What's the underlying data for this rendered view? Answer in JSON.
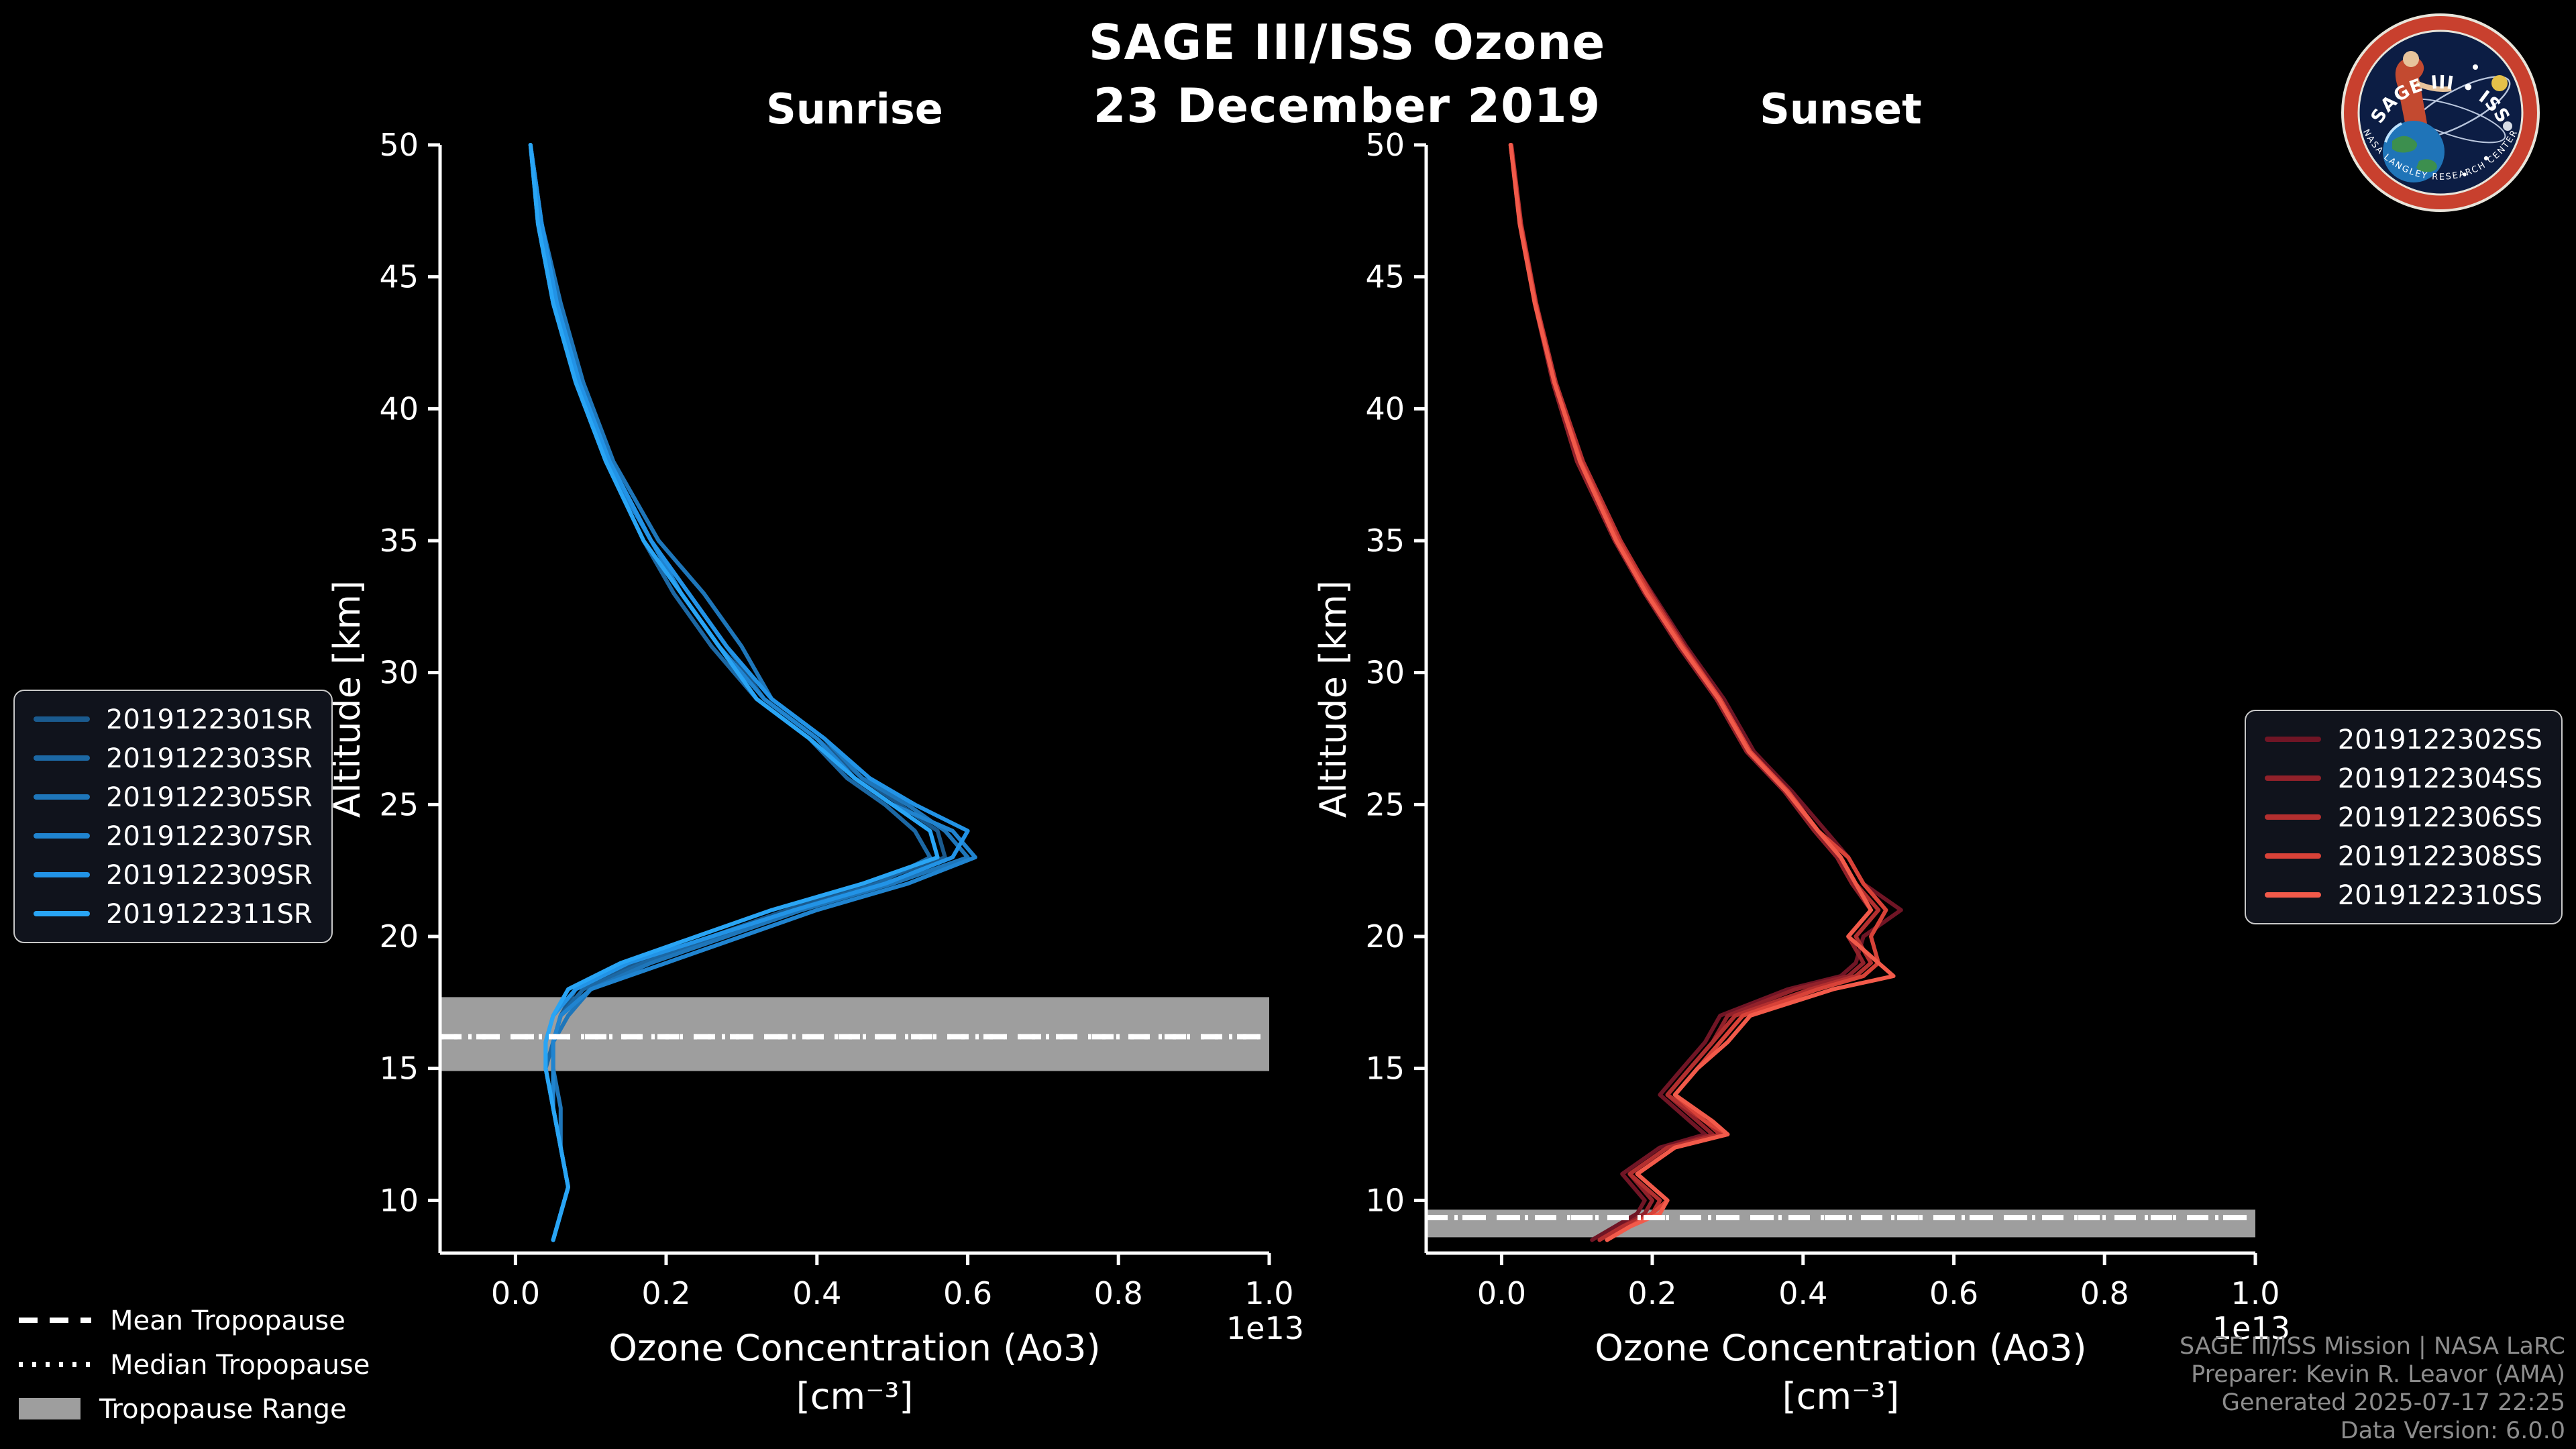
{
  "header": {
    "title_line1": "SAGE III/ISS Ozone",
    "title_line2": "23 December 2019"
  },
  "chart_data": [
    {
      "type": "line",
      "title": "Sunrise",
      "xlabel": "Ozone Concentration (Ao3)",
      "xlabel_units": "[cm⁻³]",
      "x_offset_label": "1e13",
      "ylabel": "Altitude [km]",
      "xlim": [
        -0.1,
        1.0
      ],
      "ylim": [
        8,
        50
      ],
      "xticks": [
        0.0,
        0.2,
        0.4,
        0.6,
        0.8,
        1.0
      ],
      "yticks": [
        10,
        15,
        20,
        25,
        30,
        35,
        40,
        45,
        50
      ],
      "grid": false,
      "legend_position": "outside-left",
      "colors": {
        "band": "#9e9e9e",
        "axis": "#ffffff"
      },
      "altitudes": [
        50,
        47,
        44,
        41,
        38,
        35,
        33,
        31,
        29,
        27.5,
        26,
        25,
        24,
        23,
        22,
        21,
        20,
        19,
        18,
        17,
        16,
        15,
        13.5,
        12,
        10.5,
        9.5,
        8.5
      ],
      "series": [
        {
          "name": "2019122301SR",
          "color": "#1a5a8e",
          "values": [
            0.02,
            0.035,
            0.055,
            0.085,
            0.125,
            0.18,
            0.23,
            0.28,
            0.33,
            0.4,
            0.46,
            0.51,
            0.56,
            0.57,
            0.47,
            0.36,
            0.26,
            0.16,
            0.08,
            0.06,
            0.05,
            0.05,
            0.05,
            0.06,
            0.07,
            0.06,
            0.05
          ]
        },
        {
          "name": "2019122303SR",
          "color": "#1c68a4",
          "values": [
            0.02,
            0.03,
            0.05,
            0.08,
            0.12,
            0.17,
            0.21,
            0.26,
            0.32,
            0.39,
            0.44,
            0.49,
            0.53,
            0.55,
            0.48,
            0.37,
            0.27,
            0.17,
            0.09,
            0.06,
            0.05,
            0.04,
            0.05,
            0.06,
            0.07,
            0.06,
            0.05
          ]
        },
        {
          "name": "2019122305SR",
          "color": "#1e76ba",
          "values": [
            0.02,
            0.035,
            0.06,
            0.09,
            0.13,
            0.19,
            0.25,
            0.3,
            0.34,
            0.41,
            0.46,
            0.52,
            0.57,
            0.6,
            0.5,
            0.38,
            0.28,
            0.18,
            0.1,
            0.07,
            0.05,
            0.05,
            0.06,
            0.06,
            0.07,
            0.06,
            0.05
          ]
        },
        {
          "name": "2019122307SR",
          "color": "#2084d0",
          "values": [
            0.02,
            0.03,
            0.05,
            0.08,
            0.12,
            0.18,
            0.22,
            0.27,
            0.33,
            0.4,
            0.45,
            0.5,
            0.58,
            0.61,
            0.52,
            0.4,
            0.3,
            0.2,
            0.1,
            0.06,
            0.05,
            0.05,
            0.05,
            0.06,
            0.07,
            0.06,
            0.05
          ]
        },
        {
          "name": "2019122309SR",
          "color": "#2293e6",
          "values": [
            0.02,
            0.035,
            0.055,
            0.085,
            0.125,
            0.18,
            0.23,
            0.28,
            0.34,
            0.41,
            0.47,
            0.53,
            0.6,
            0.58,
            0.49,
            0.37,
            0.26,
            0.15,
            0.08,
            0.05,
            0.04,
            0.04,
            0.05,
            0.06,
            0.07,
            0.06,
            0.05
          ]
        },
        {
          "name": "2019122311SR",
          "color": "#29a5f5",
          "values": [
            0.02,
            0.03,
            0.05,
            0.08,
            0.12,
            0.17,
            0.22,
            0.27,
            0.32,
            0.39,
            0.45,
            0.5,
            0.55,
            0.56,
            0.46,
            0.34,
            0.24,
            0.14,
            0.07,
            0.05,
            0.04,
            0.04,
            0.05,
            0.06,
            0.07,
            0.06,
            0.05
          ]
        }
      ],
      "tropopause": {
        "mean": 16.2,
        "median": 16.2,
        "range": [
          14.9,
          17.7
        ]
      }
    },
    {
      "type": "line",
      "title": "Sunset",
      "xlabel": "Ozone Concentration (Ao3)",
      "xlabel_units": "[cm⁻³]",
      "x_offset_label": "1e13",
      "ylabel": "Altitude [km]",
      "xlim": [
        -0.1,
        1.0
      ],
      "ylim": [
        8,
        50
      ],
      "xticks": [
        0.0,
        0.2,
        0.4,
        0.6,
        0.8,
        1.0
      ],
      "yticks": [
        10,
        15,
        20,
        25,
        30,
        35,
        40,
        45,
        50
      ],
      "grid": false,
      "legend_position": "outside-right",
      "colors": {
        "band": "#9e9e9e",
        "axis": "#ffffff"
      },
      "altitudes": [
        50,
        47,
        44,
        41,
        38,
        35,
        33,
        31,
        29,
        27,
        25.5,
        24,
        23,
        22,
        21,
        20,
        19,
        18.5,
        18,
        17,
        16,
        15,
        14,
        13,
        12.5,
        12,
        11,
        10,
        9.5,
        9,
        8.5
      ],
      "series": [
        {
          "name": "2019122302SS",
          "color": "#701525",
          "values": [
            0.012,
            0.025,
            0.045,
            0.07,
            0.105,
            0.155,
            0.2,
            0.245,
            0.295,
            0.335,
            0.385,
            0.43,
            0.46,
            0.48,
            0.53,
            0.48,
            0.47,
            0.45,
            0.38,
            0.29,
            0.27,
            0.24,
            0.21,
            0.25,
            0.27,
            0.21,
            0.16,
            0.19,
            0.18,
            0.15,
            0.12
          ]
        },
        {
          "name": "2019122304SS",
          "color": "#91212a",
          "values": [
            0.012,
            0.024,
            0.044,
            0.068,
            0.1,
            0.15,
            0.19,
            0.235,
            0.285,
            0.325,
            0.375,
            0.415,
            0.445,
            0.465,
            0.49,
            0.46,
            0.48,
            0.46,
            0.39,
            0.3,
            0.28,
            0.25,
            0.22,
            0.26,
            0.28,
            0.22,
            0.17,
            0.2,
            0.19,
            0.16,
            0.13
          ]
        },
        {
          "name": "2019122306SS",
          "color": "#b32f2f",
          "values": [
            0.013,
            0.026,
            0.046,
            0.072,
            0.108,
            0.158,
            0.198,
            0.242,
            0.29,
            0.33,
            0.38,
            0.42,
            0.45,
            0.47,
            0.5,
            0.47,
            0.49,
            0.47,
            0.41,
            0.31,
            0.28,
            0.25,
            0.22,
            0.27,
            0.29,
            0.22,
            0.17,
            0.21,
            0.2,
            0.16,
            0.13
          ]
        },
        {
          "name": "2019122308SS",
          "color": "#d84238",
          "values": [
            0.012,
            0.025,
            0.045,
            0.07,
            0.105,
            0.155,
            0.195,
            0.24,
            0.29,
            0.33,
            0.38,
            0.42,
            0.46,
            0.48,
            0.51,
            0.49,
            0.5,
            0.48,
            0.42,
            0.32,
            0.29,
            0.26,
            0.23,
            0.27,
            0.3,
            0.23,
            0.18,
            0.22,
            0.2,
            0.17,
            0.14
          ]
        },
        {
          "name": "2019122310SS",
          "color": "#f25a4a",
          "values": [
            0.012,
            0.024,
            0.044,
            0.07,
            0.104,
            0.152,
            0.192,
            0.238,
            0.288,
            0.328,
            0.378,
            0.42,
            0.45,
            0.47,
            0.49,
            0.46,
            0.5,
            0.52,
            0.44,
            0.33,
            0.3,
            0.26,
            0.23,
            0.28,
            0.3,
            0.23,
            0.18,
            0.22,
            0.21,
            0.17,
            0.14
          ]
        }
      ],
      "tropopause": {
        "mean": 9.35,
        "median": 9.35,
        "range": [
          8.6,
          9.65
        ]
      }
    }
  ],
  "legend_extra": {
    "mean": "Mean Tropopause",
    "median": "Median Tropopause",
    "range": "Tropopause Range"
  },
  "credits": {
    "line1": "SAGE III/ISS Mission | NASA LaRC",
    "line2": "Preparer: Kevin R. Leavor (AMA)",
    "line3": "Generated 2025-07-17 22:25",
    "line4": "Data Version: 6.0.0"
  },
  "logo": {
    "title": "SAGE III • ISS",
    "ring_text": "NASA LANGLEY RESEARCH CENTER"
  }
}
